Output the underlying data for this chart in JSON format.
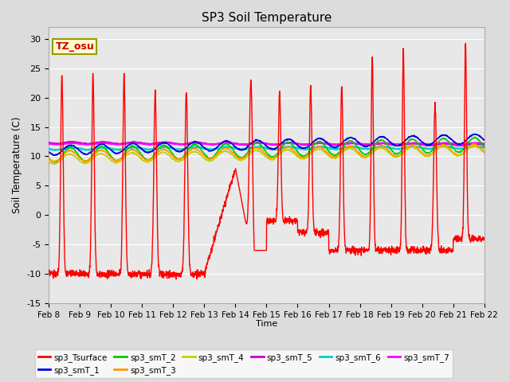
{
  "title": "SP3 Soil Temperature",
  "ylabel": "Soil Temperature (C)",
  "xlabel": "Time",
  "ylim": [
    -15,
    32
  ],
  "yticks": [
    -15,
    -10,
    -5,
    0,
    5,
    10,
    15,
    20,
    25,
    30
  ],
  "x_tick_labels": [
    "Feb 8",
    "Feb 9",
    "Feb 10",
    "Feb 11",
    "Feb 12",
    "Feb 13",
    "Feb 14",
    "Feb 15",
    "Feb 16",
    "Feb 17",
    "Feb 18",
    "Feb 19",
    "Feb 20",
    "Feb 21",
    "Feb 22"
  ],
  "series_colors": {
    "sp3_Tsurface": "#ff0000",
    "sp3_smT_1": "#0000dd",
    "sp3_smT_2": "#00cc00",
    "sp3_smT_3": "#ff9900",
    "sp3_smT_4": "#cccc00",
    "sp3_smT_5": "#cc00cc",
    "sp3_smT_6": "#00cccc",
    "sp3_smT_7": "#ff00ff"
  },
  "annotation_text": "TZ_osu",
  "annotation_color": "#cc0000",
  "annotation_bg": "#ffffcc",
  "annotation_edge": "#999900",
  "bg_color": "#dcdcdc",
  "plot_bg_color": "#e8e8e8",
  "grid_color": "#ffffff",
  "spine_color": "#aaaaaa"
}
